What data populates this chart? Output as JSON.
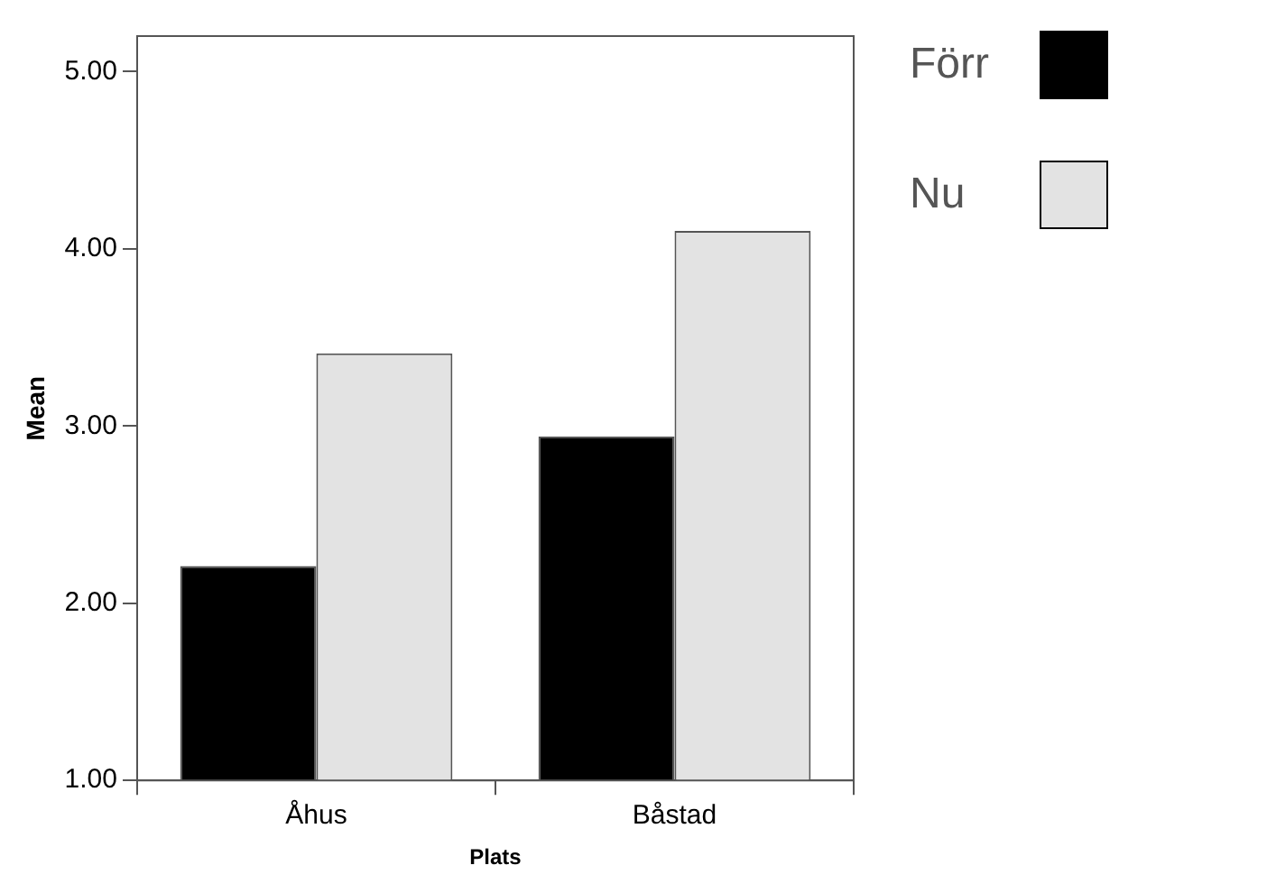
{
  "chart_data": {
    "type": "bar",
    "xlabel": "Plats",
    "ylabel": "Mean",
    "categories": [
      "Åhus",
      "Båstad"
    ],
    "series": [
      {
        "name": "Förr",
        "color": "#000000",
        "values": [
          2.21,
          2.94
        ]
      },
      {
        "name": "Nu",
        "color": "#e3e3e3",
        "values": [
          3.41,
          4.1
        ]
      }
    ],
    "ylim": [
      1,
      5.2
    ],
    "yticks": [
      {
        "value": 1,
        "label": "1.00"
      },
      {
        "value": 2,
        "label": "2.00"
      },
      {
        "value": 3,
        "label": "3.00"
      },
      {
        "value": 4,
        "label": "4.00"
      },
      {
        "value": 5,
        "label": "5.00"
      }
    ],
    "grid": false,
    "legend": "right"
  }
}
